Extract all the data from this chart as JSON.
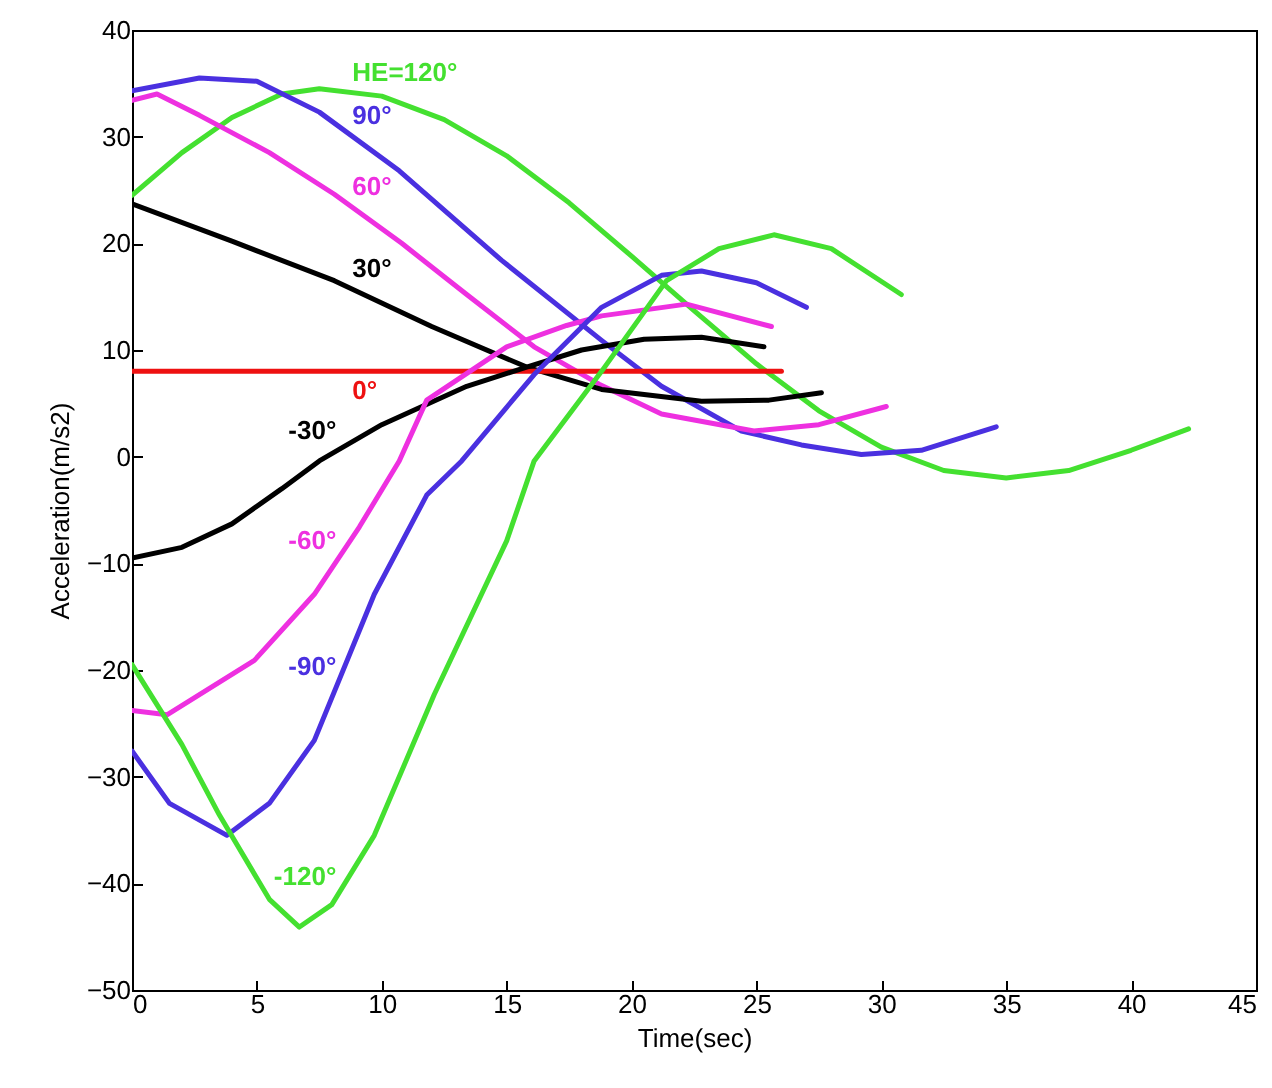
{
  "chart_data": {
    "type": "line",
    "xlabel": "Time(sec)",
    "ylabel": "Acceleration(m/s2)",
    "xlim": [
      0,
      45
    ],
    "ylim": [
      -50,
      40
    ],
    "xticks": [
      0,
      5,
      10,
      15,
      20,
      25,
      30,
      35,
      40,
      45
    ],
    "yticks": [
      -50,
      -40,
      -30,
      -20,
      -10,
      0,
      10,
      20,
      30,
      40
    ],
    "grid": false,
    "series": [
      {
        "name": "HE=120°",
        "color": "#44e030",
        "x": [
          0,
          2,
          4,
          6,
          7.5,
          10,
          12.5,
          15,
          17.5,
          20,
          22.5,
          25,
          27.5,
          30,
          32.5,
          35,
          37.5,
          40,
          42.3
        ],
        "values": [
          24.5,
          28.5,
          31.8,
          34,
          34.5,
          33.8,
          31.6,
          28.2,
          23.8,
          18.8,
          13.7,
          8.7,
          4.3,
          0.9,
          -1.3,
          -2,
          -1.3,
          0.6,
          2.6
        ]
      },
      {
        "name": "90°",
        "color": "#4a30e0",
        "x": [
          0,
          2.7,
          5,
          7.5,
          10.7,
          14.8,
          18.8,
          21.2,
          24.4,
          26.8,
          29.2,
          31.6,
          34.6
        ],
        "values": [
          34.3,
          35.5,
          35.2,
          32.3,
          26.8,
          18.4,
          10.9,
          6.6,
          2.4,
          1.1,
          0.2,
          0.6,
          2.8
        ]
      },
      {
        "name": "60°",
        "color": "#ee30e0",
        "x": [
          0,
          1,
          2.7,
          5.5,
          8.1,
          10.8,
          13.4,
          16.1,
          18.7,
          21.2,
          24.9,
          27.5,
          30.2
        ],
        "values": [
          33.4,
          34,
          32,
          28.5,
          24.6,
          20,
          15.2,
          10.3,
          6.8,
          4,
          2.4,
          3,
          4.7
        ]
      },
      {
        "name": "30°",
        "color": "#000000",
        "x": [
          0,
          4,
          8.1,
          12,
          15.8,
          18.8,
          22.8,
          25.5,
          27.6
        ],
        "values": [
          23.7,
          20.2,
          16.5,
          12.2,
          8.4,
          6.3,
          5.2,
          5.3,
          6
        ]
      },
      {
        "name": "0°",
        "color": "#ee1111",
        "x": [
          0,
          26
        ],
        "values": [
          8,
          8
        ]
      },
      {
        "name": "-30°",
        "color": "#000000",
        "x": [
          0,
          2,
          4,
          6,
          7.5,
          10,
          13.4,
          15.8,
          18,
          20.5,
          22.8,
          25.3
        ],
        "values": [
          -9.5,
          -8.5,
          -6.3,
          -3,
          -0.4,
          3,
          6.6,
          8.4,
          10,
          11,
          11.2,
          10.3
        ]
      },
      {
        "name": "-60°",
        "color": "#ee30e0",
        "x": [
          0,
          1.4,
          4.9,
          7.3,
          9.1,
          10.7,
          11.8,
          15,
          17.4,
          18.8,
          22.2,
          25.6
        ],
        "values": [
          -23.8,
          -24.2,
          -19.1,
          -12.9,
          -6.6,
          -0.4,
          5.3,
          10.3,
          12.3,
          13.2,
          14.3,
          12.2
        ]
      },
      {
        "name": "-90°",
        "color": "#4a30e0",
        "x": [
          0,
          1.5,
          3.8,
          5.5,
          7.3,
          9.7,
          11.8,
          13.2,
          16.1,
          18.8,
          21.2,
          22.8,
          25,
          27
        ],
        "values": [
          -27.6,
          -32.5,
          -35.5,
          -32.5,
          -26.6,
          -12.9,
          -3.6,
          -0.4,
          7.7,
          14,
          17,
          17.4,
          16.3,
          14
        ]
      },
      {
        "name": "-120°",
        "color": "#44e030",
        "x": [
          0,
          2,
          3.5,
          5.5,
          6.7,
          8,
          9.7,
          12.1,
          15,
          16.1,
          18.8,
          21.4,
          23.5,
          25.7,
          28,
          30.8
        ],
        "values": [
          -19.5,
          -27,
          -33.6,
          -41.5,
          -44.1,
          -42,
          -35.5,
          -22.3,
          -7.9,
          -0.4,
          8,
          16.5,
          19.5,
          20.8,
          19.5,
          15.2
        ]
      }
    ]
  }
}
